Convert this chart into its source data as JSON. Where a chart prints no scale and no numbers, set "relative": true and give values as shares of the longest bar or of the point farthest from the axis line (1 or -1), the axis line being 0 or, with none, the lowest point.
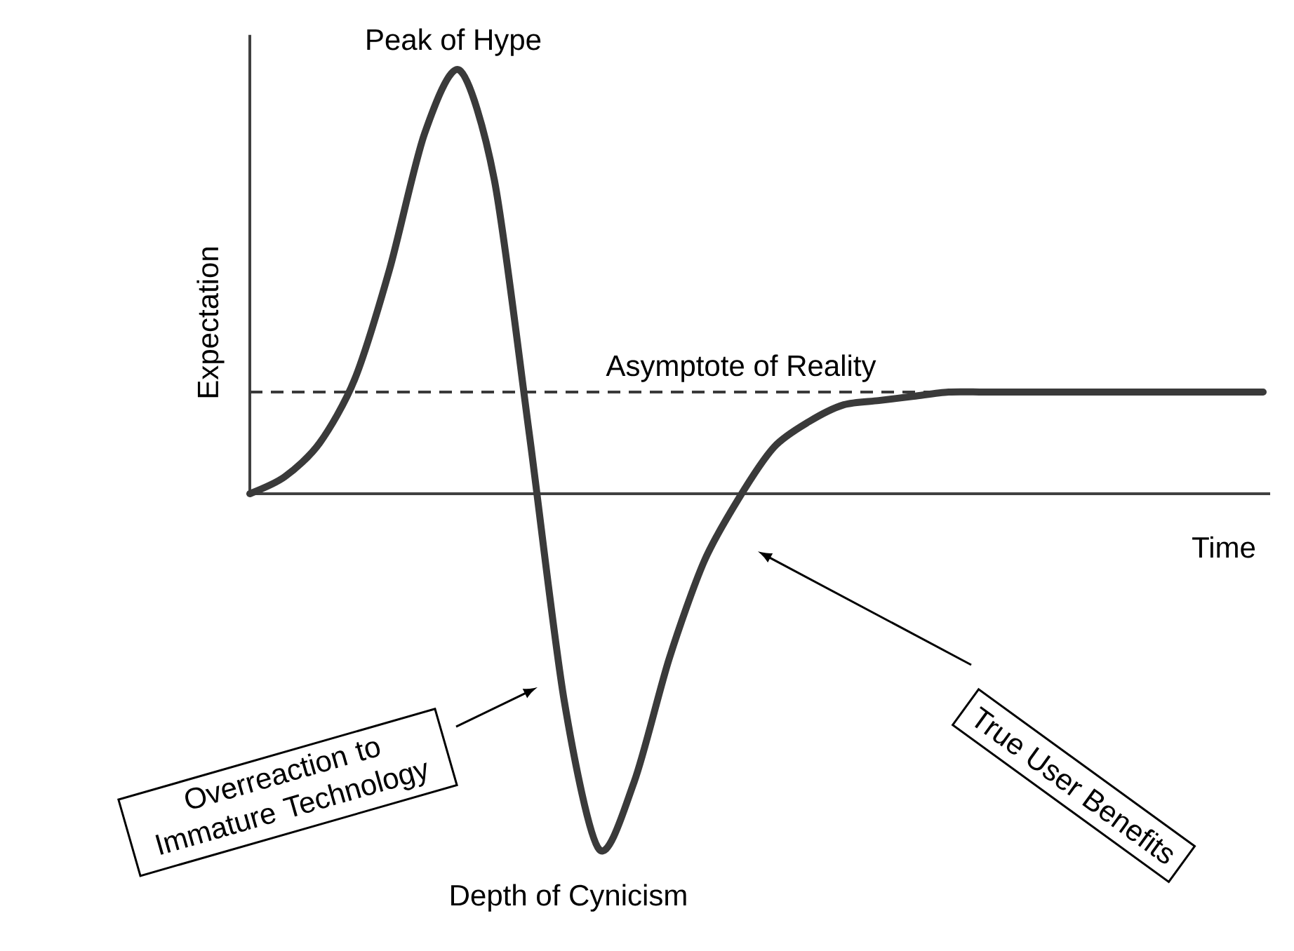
{
  "chart_data": {
    "type": "line",
    "relative": true,
    "xlabel": "Time",
    "ylabel": "Expectation",
    "categories": [
      null,
      null,
      null,
      null,
      null,
      null,
      null,
      null,
      null,
      null,
      null,
      null,
      null,
      null,
      null,
      null,
      null,
      null,
      null,
      null,
      null,
      null,
      null,
      null,
      null,
      null,
      null,
      null,
      null,
      null
    ],
    "series": [
      {
        "color": "#3a3a3a",
        "values": [
          0,
          0.04,
          0.12,
          0.27,
          0.53,
          0.85,
          1,
          0.74,
          0.14,
          -0.49,
          -0.84,
          -0.68,
          -0.39,
          -0.16,
          -0.01,
          0.11,
          0.17,
          0.21,
          0.22,
          0.23,
          0.24,
          0.24,
          0.24,
          0.24,
          0.24,
          0.24,
          0.24,
          0.24,
          0.24,
          0.24
        ]
      }
    ],
    "ref_lines": [
      {
        "axis": "y",
        "value": 0.24,
        "label": "Asymptote of Reality",
        "color": "#3a3a3a",
        "line_style": "dashed"
      }
    ],
    "annotations": [
      "Peak of Hype",
      "Depth of Cynicism",
      "Overreaction to Immature Technology",
      "True User Benefits"
    ]
  }
}
